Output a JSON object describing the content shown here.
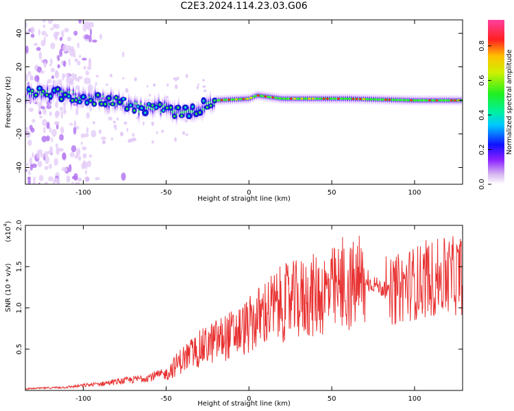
{
  "title": "C2E3.2024.114.23.03.G06",
  "chart_data": [
    {
      "type": "heatmap",
      "xlabel": "Height of straight line (km)",
      "ylabel": "Frequency (Hz)",
      "xlim": [
        -135,
        129
      ],
      "ylim": [
        -50,
        48
      ],
      "xticks": [
        "-100",
        "-50",
        "0",
        "50",
        "100"
      ],
      "yticks": [
        "-40",
        "-20",
        "0",
        "20",
        "40"
      ],
      "colorbar": {
        "label": "Normalized spectral amplitude",
        "range": [
          0,
          0.95
        ],
        "ticks": [
          "0.0",
          "0.2",
          "0.4",
          "0.6",
          "0.8"
        ]
      },
      "ridge": {
        "x": [
          -130,
          -110,
          -90,
          -70,
          -50,
          -40,
          -30,
          -20,
          0,
          5,
          20,
          60,
          100,
          129
        ],
        "frequency": [
          4,
          3,
          1,
          -4,
          -5,
          -8,
          -4,
          0,
          1,
          3,
          1,
          1,
          0,
          0
        ]
      }
    },
    {
      "type": "line",
      "xlabel": "Height of straight line (km)",
      "ylabel": "SNR (10 * v/v)",
      "yscale_note": "(x10",
      "yscale_exp": "4",
      "xlim": [
        -135,
        129
      ],
      "ylim": [
        0,
        2.0
      ],
      "xticks": [
        "-100",
        "-50",
        "0",
        "50",
        "100"
      ],
      "yticks": [
        "0.5",
        "1.0",
        "1.5",
        "2.0"
      ],
      "color": "#e83030",
      "trend": {
        "x": [
          -135,
          -110,
          -90,
          -70,
          -50,
          -40,
          -30,
          -20,
          -10,
          0,
          10,
          20,
          40,
          60,
          75,
          85,
          95,
          110,
          129
        ],
        "y": [
          0.02,
          0.04,
          0.08,
          0.13,
          0.2,
          0.38,
          0.5,
          0.6,
          0.68,
          0.78,
          0.95,
          1.05,
          1.15,
          1.25,
          1.3,
          1.18,
          1.28,
          1.35,
          1.4
        ]
      }
    }
  ]
}
